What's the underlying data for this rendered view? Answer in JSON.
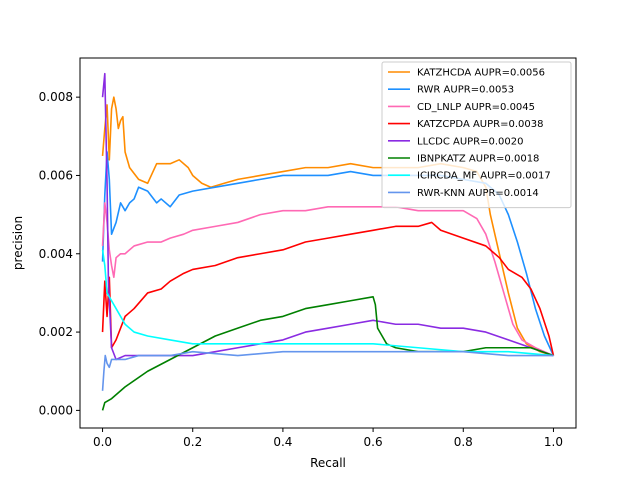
{
  "chart_data": {
    "type": "line",
    "title": "",
    "xlabel": "Recall",
    "ylabel": "precision",
    "xlim": [
      -0.05,
      1.05
    ],
    "ylim": [
      -0.00045,
      0.009
    ],
    "xticks": [
      0.0,
      0.2,
      0.4,
      0.6,
      0.8,
      1.0
    ],
    "xtick_labels": [
      "0.0",
      "0.2",
      "0.4",
      "0.6",
      "0.8",
      "1.0"
    ],
    "yticks": [
      0.0,
      0.002,
      0.004,
      0.006,
      0.008
    ],
    "ytick_labels": [
      "0.000",
      "0.002",
      "0.004",
      "0.006",
      "0.008"
    ],
    "grid": false,
    "legend_position": "top-right",
    "series": [
      {
        "name": "KATZHCDA AUPR=0.0056",
        "color": "#ff8c00",
        "points": [
          [
            0.0,
            0.0065
          ],
          [
            0.005,
            0.0072
          ],
          [
            0.01,
            0.0078
          ],
          [
            0.015,
            0.0064
          ],
          [
            0.02,
            0.0077
          ],
          [
            0.025,
            0.008
          ],
          [
            0.03,
            0.0077
          ],
          [
            0.035,
            0.0072
          ],
          [
            0.04,
            0.0074
          ],
          [
            0.045,
            0.0075
          ],
          [
            0.05,
            0.0066
          ],
          [
            0.06,
            0.0062
          ],
          [
            0.08,
            0.0059
          ],
          [
            0.1,
            0.0058
          ],
          [
            0.12,
            0.0063
          ],
          [
            0.15,
            0.0063
          ],
          [
            0.17,
            0.0064
          ],
          [
            0.19,
            0.0062
          ],
          [
            0.2,
            0.006
          ],
          [
            0.22,
            0.0058
          ],
          [
            0.24,
            0.0057
          ],
          [
            0.27,
            0.0058
          ],
          [
            0.3,
            0.0059
          ],
          [
            0.35,
            0.006
          ],
          [
            0.4,
            0.0061
          ],
          [
            0.45,
            0.0062
          ],
          [
            0.5,
            0.0062
          ],
          [
            0.55,
            0.0063
          ],
          [
            0.6,
            0.0062
          ],
          [
            0.65,
            0.0062
          ],
          [
            0.7,
            0.0062
          ],
          [
            0.75,
            0.0063
          ],
          [
            0.8,
            0.0062
          ],
          [
            0.83,
            0.0061
          ],
          [
            0.85,
            0.0057
          ],
          [
            0.86,
            0.005
          ],
          [
            0.88,
            0.004
          ],
          [
            0.9,
            0.003
          ],
          [
            0.92,
            0.0021
          ],
          [
            0.94,
            0.0017
          ],
          [
            0.97,
            0.0015
          ],
          [
            1.0,
            0.0014
          ]
        ]
      },
      {
        "name": "RWR AUPR=0.0053",
        "color": "#1e90ff",
        "points": [
          [
            0.0,
            0.0038
          ],
          [
            0.005,
            0.0055
          ],
          [
            0.01,
            0.0066
          ],
          [
            0.015,
            0.0059
          ],
          [
            0.02,
            0.0045
          ],
          [
            0.03,
            0.0048
          ],
          [
            0.04,
            0.0053
          ],
          [
            0.05,
            0.0051
          ],
          [
            0.06,
            0.0053
          ],
          [
            0.07,
            0.0054
          ],
          [
            0.08,
            0.0057
          ],
          [
            0.1,
            0.0056
          ],
          [
            0.12,
            0.0053
          ],
          [
            0.13,
            0.0054
          ],
          [
            0.15,
            0.0052
          ],
          [
            0.17,
            0.0055
          ],
          [
            0.2,
            0.0056
          ],
          [
            0.25,
            0.0057
          ],
          [
            0.3,
            0.0058
          ],
          [
            0.35,
            0.0059
          ],
          [
            0.4,
            0.006
          ],
          [
            0.45,
            0.006
          ],
          [
            0.5,
            0.006
          ],
          [
            0.55,
            0.0061
          ],
          [
            0.6,
            0.006
          ],
          [
            0.65,
            0.006
          ],
          [
            0.7,
            0.006
          ],
          [
            0.75,
            0.006
          ],
          [
            0.8,
            0.0059
          ],
          [
            0.85,
            0.0058
          ],
          [
            0.88,
            0.0055
          ],
          [
            0.9,
            0.005
          ],
          [
            0.92,
            0.0043
          ],
          [
            0.94,
            0.0035
          ],
          [
            0.96,
            0.0026
          ],
          [
            0.98,
            0.0019
          ],
          [
            1.0,
            0.0014
          ]
        ]
      },
      {
        "name": "CD_LNLP AUPR=0.0045",
        "color": "#ff69b4",
        "points": [
          [
            0.0,
            0.0042
          ],
          [
            0.005,
            0.0053
          ],
          [
            0.01,
            0.0048
          ],
          [
            0.015,
            0.0041
          ],
          [
            0.02,
            0.0037
          ],
          [
            0.025,
            0.0034
          ],
          [
            0.03,
            0.0039
          ],
          [
            0.04,
            0.004
          ],
          [
            0.05,
            0.004
          ],
          [
            0.07,
            0.0042
          ],
          [
            0.1,
            0.0043
          ],
          [
            0.13,
            0.0043
          ],
          [
            0.15,
            0.0044
          ],
          [
            0.18,
            0.0045
          ],
          [
            0.2,
            0.0046
          ],
          [
            0.25,
            0.0047
          ],
          [
            0.3,
            0.0048
          ],
          [
            0.35,
            0.005
          ],
          [
            0.4,
            0.0051
          ],
          [
            0.45,
            0.0051
          ],
          [
            0.5,
            0.0052
          ],
          [
            0.55,
            0.0052
          ],
          [
            0.6,
            0.0052
          ],
          [
            0.65,
            0.0052
          ],
          [
            0.7,
            0.0051
          ],
          [
            0.75,
            0.0051
          ],
          [
            0.8,
            0.0051
          ],
          [
            0.83,
            0.0049
          ],
          [
            0.85,
            0.0045
          ],
          [
            0.87,
            0.0038
          ],
          [
            0.89,
            0.003
          ],
          [
            0.91,
            0.0022
          ],
          [
            0.93,
            0.0018
          ],
          [
            0.96,
            0.0016
          ],
          [
            1.0,
            0.0014
          ]
        ]
      },
      {
        "name": "KATZCPDA AUPR=0.0038",
        "color": "#ff0000",
        "points": [
          [
            0.0,
            0.002
          ],
          [
            0.005,
            0.0033
          ],
          [
            0.01,
            0.0024
          ],
          [
            0.015,
            0.0034
          ],
          [
            0.02,
            0.0016
          ],
          [
            0.03,
            0.0018
          ],
          [
            0.05,
            0.0024
          ],
          [
            0.07,
            0.0026
          ],
          [
            0.1,
            0.003
          ],
          [
            0.13,
            0.0031
          ],
          [
            0.15,
            0.0033
          ],
          [
            0.18,
            0.0035
          ],
          [
            0.2,
            0.0036
          ],
          [
            0.25,
            0.0037
          ],
          [
            0.3,
            0.0039
          ],
          [
            0.35,
            0.004
          ],
          [
            0.4,
            0.0041
          ],
          [
            0.45,
            0.0043
          ],
          [
            0.5,
            0.0044
          ],
          [
            0.55,
            0.0045
          ],
          [
            0.6,
            0.0046
          ],
          [
            0.65,
            0.0047
          ],
          [
            0.7,
            0.0047
          ],
          [
            0.73,
            0.0048
          ],
          [
            0.75,
            0.0046
          ],
          [
            0.8,
            0.0044
          ],
          [
            0.85,
            0.0042
          ],
          [
            0.88,
            0.0039
          ],
          [
            0.9,
            0.0036
          ],
          [
            0.93,
            0.0034
          ],
          [
            0.95,
            0.0031
          ],
          [
            0.97,
            0.0026
          ],
          [
            0.99,
            0.0019
          ],
          [
            1.0,
            0.0014
          ]
        ]
      },
      {
        "name": "LLCDC AUPR=0.0020",
        "color": "#8a2be2",
        "points": [
          [
            0.0,
            0.008
          ],
          [
            0.005,
            0.0086
          ],
          [
            0.01,
            0.0058
          ],
          [
            0.013,
            0.0033
          ],
          [
            0.02,
            0.0016
          ],
          [
            0.03,
            0.0013
          ],
          [
            0.05,
            0.0014
          ],
          [
            0.1,
            0.0014
          ],
          [
            0.15,
            0.0014
          ],
          [
            0.2,
            0.0014
          ],
          [
            0.25,
            0.0015
          ],
          [
            0.3,
            0.0016
          ],
          [
            0.35,
            0.0017
          ],
          [
            0.4,
            0.0018
          ],
          [
            0.45,
            0.002
          ],
          [
            0.5,
            0.0021
          ],
          [
            0.55,
            0.0022
          ],
          [
            0.6,
            0.0023
          ],
          [
            0.65,
            0.0022
          ],
          [
            0.7,
            0.0022
          ],
          [
            0.75,
            0.0021
          ],
          [
            0.8,
            0.0021
          ],
          [
            0.85,
            0.002
          ],
          [
            0.9,
            0.0018
          ],
          [
            0.95,
            0.0016
          ],
          [
            1.0,
            0.0014
          ]
        ]
      },
      {
        "name": "IBNPKATZ AUPR=0.0018",
        "color": "#008000",
        "points": [
          [
            0.0,
            0.0
          ],
          [
            0.005,
            0.0002
          ],
          [
            0.02,
            0.0003
          ],
          [
            0.05,
            0.0006
          ],
          [
            0.1,
            0.001
          ],
          [
            0.15,
            0.0013
          ],
          [
            0.2,
            0.0016
          ],
          [
            0.25,
            0.0019
          ],
          [
            0.3,
            0.0021
          ],
          [
            0.35,
            0.0023
          ],
          [
            0.4,
            0.0024
          ],
          [
            0.45,
            0.0026
          ],
          [
            0.5,
            0.0027
          ],
          [
            0.55,
            0.0028
          ],
          [
            0.6,
            0.0029
          ],
          [
            0.605,
            0.0027
          ],
          [
            0.61,
            0.0021
          ],
          [
            0.63,
            0.0017
          ],
          [
            0.65,
            0.0016
          ],
          [
            0.7,
            0.0015
          ],
          [
            0.75,
            0.0015
          ],
          [
            0.8,
            0.0015
          ],
          [
            0.85,
            0.0016
          ],
          [
            0.9,
            0.0016
          ],
          [
            0.95,
            0.0016
          ],
          [
            1.0,
            0.0014
          ]
        ]
      },
      {
        "name": "ICIRCDA_MF AUPR=0.0017",
        "color": "#00ffff",
        "points": [
          [
            0.0,
            0.0041
          ],
          [
            0.005,
            0.0037
          ],
          [
            0.01,
            0.003
          ],
          [
            0.02,
            0.0028
          ],
          [
            0.03,
            0.0026
          ],
          [
            0.05,
            0.0022
          ],
          [
            0.07,
            0.002
          ],
          [
            0.1,
            0.0019
          ],
          [
            0.15,
            0.0018
          ],
          [
            0.2,
            0.0017
          ],
          [
            0.3,
            0.0017
          ],
          [
            0.4,
            0.0017
          ],
          [
            0.5,
            0.0017
          ],
          [
            0.6,
            0.0017
          ],
          [
            0.7,
            0.0016
          ],
          [
            0.8,
            0.0015
          ],
          [
            0.9,
            0.0015
          ],
          [
            1.0,
            0.0014
          ]
        ]
      },
      {
        "name": "RWR-KNN AUPR=0.0014",
        "color": "#6495ed",
        "points": [
          [
            0.0,
            0.0005
          ],
          [
            0.003,
            0.001
          ],
          [
            0.006,
            0.0014
          ],
          [
            0.01,
            0.0012
          ],
          [
            0.015,
            0.0011
          ],
          [
            0.02,
            0.0013
          ],
          [
            0.03,
            0.0013
          ],
          [
            0.05,
            0.0013
          ],
          [
            0.08,
            0.0014
          ],
          [
            0.1,
            0.0014
          ],
          [
            0.15,
            0.0014
          ],
          [
            0.2,
            0.0015
          ],
          [
            0.3,
            0.0014
          ],
          [
            0.4,
            0.0015
          ],
          [
            0.5,
            0.0015
          ],
          [
            0.6,
            0.0015
          ],
          [
            0.7,
            0.0015
          ],
          [
            0.8,
            0.0015
          ],
          [
            0.9,
            0.0014
          ],
          [
            1.0,
            0.0014
          ]
        ]
      }
    ]
  }
}
